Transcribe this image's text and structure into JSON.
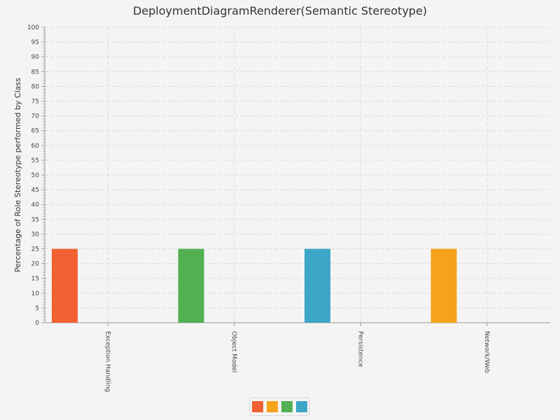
{
  "chart_data": {
    "type": "bar",
    "title": "DeploymentDiagramRenderer(Semantic Stereotype)",
    "xlabel": "",
    "ylabel": "Percentage of Role Stereotype performed by Class",
    "ylim": [
      0,
      100
    ],
    "ytick_step": 5,
    "grid": true,
    "categories": [
      "Exception Handling",
      "Object Model",
      "Persistence",
      "Network/Web"
    ],
    "series": [
      {
        "color": "#f06030",
        "values": [
          25,
          0,
          0,
          0
        ]
      },
      {
        "color": "#f5a31a",
        "values": [
          0,
          0,
          0,
          25
        ]
      },
      {
        "color": "#52b052",
        "values": [
          0,
          25,
          0,
          0
        ]
      },
      {
        "color": "#3da6c6",
        "values": [
          0,
          0,
          25,
          0
        ]
      }
    ],
    "legend": {
      "position": "bottom-center"
    }
  }
}
